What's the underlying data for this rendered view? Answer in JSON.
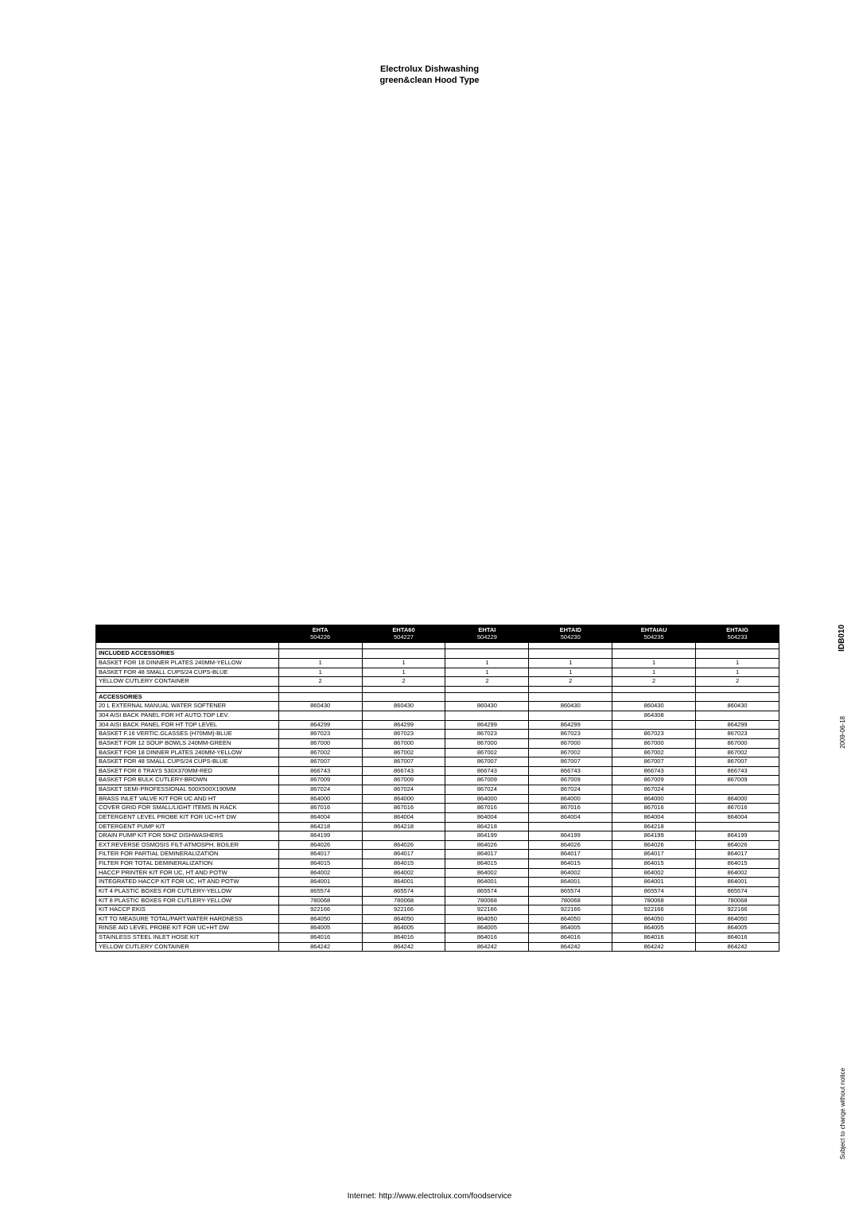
{
  "header": {
    "line1": "Electrolux Dishwashing",
    "line2": "green&clean Hood Type"
  },
  "footer": "Internet: http://www.electrolux.com/foodservice",
  "side": {
    "code": "IDB010",
    "date": "2009-06-18",
    "note": "Subject to change without notice"
  },
  "table": {
    "columns": [
      {
        "name": "EHTA",
        "sub": "504226"
      },
      {
        "name": "EHTA60",
        "sub": "504227"
      },
      {
        "name": "EHTAI",
        "sub": "504229"
      },
      {
        "name": "EHTAID",
        "sub": "504230"
      },
      {
        "name": "EHTAIAU",
        "sub": "504235"
      },
      {
        "name": "EHTAIG",
        "sub": "504233"
      }
    ],
    "sections": [
      {
        "title": "INCLUDED ACCESSORIES",
        "rows": [
          {
            "label": "BASKET FOR 18 DINNER PLATES 240MM-YELLOW",
            "v": [
              "1",
              "1",
              "1",
              "1",
              "1",
              "1"
            ]
          },
          {
            "label": "BASKET FOR 48 SMALL CUPS/24 CUPS-BLUE",
            "v": [
              "1",
              "1",
              "1",
              "1",
              "1",
              "1"
            ]
          },
          {
            "label": "YELLOW CUTLERY CONTAINER",
            "v": [
              "2",
              "2",
              "2",
              "2",
              "2",
              "2"
            ]
          }
        ]
      },
      {
        "title": "ACCESSORIES",
        "rows": [
          {
            "label": "20 L EXTERNAL MANUAL WATER SOFTENER",
            "v": [
              "860430",
              "860430",
              "860430",
              "860430",
              "860430",
              "860430"
            ]
          },
          {
            "label": "304 AISI BACK PANEL FOR HT AUTO.TOP LEV.",
            "v": [
              "",
              "",
              "",
              "",
              "864308",
              ""
            ]
          },
          {
            "label": "304 AISI BACK PANEL FOR HT TOP LEVEL",
            "v": [
              "864299",
              "864299",
              "864299",
              "864299",
              "",
              "864299"
            ]
          },
          {
            "label": "BASKET F.16 VERTIC.GLASSES (H70MM)-BLUE",
            "v": [
              "867023",
              "867023",
              "867023",
              "867023",
              "867023",
              "867023"
            ]
          },
          {
            "label": "BASKET FOR 12 SOUP BOWLS 240MM-GREEN",
            "v": [
              "867000",
              "867000",
              "867000",
              "867000",
              "867000",
              "867000"
            ]
          },
          {
            "label": "BASKET FOR 18 DINNER PLATES 240MM-YELLOW",
            "v": [
              "867002",
              "867002",
              "867002",
              "867002",
              "867002",
              "867002"
            ]
          },
          {
            "label": "BASKET FOR 48 SMALL CUPS/24 CUPS-BLUE",
            "v": [
              "867007",
              "867007",
              "867007",
              "867007",
              "867007",
              "867007"
            ]
          },
          {
            "label": "BASKET FOR 6 TRAYS 530X370MM-RED",
            "v": [
              "866743",
              "866743",
              "866743",
              "866743",
              "866743",
              "866743"
            ]
          },
          {
            "label": "BASKET FOR BULK CUTLERY-BROWN",
            "v": [
              "867009",
              "867009",
              "867009",
              "867009",
              "867009",
              "867009"
            ]
          },
          {
            "label": "BASKET SEMI-PROFESSIONAL 500X500X190MM",
            "v": [
              "867024",
              "867024",
              "867024",
              "867024",
              "867024",
              ""
            ]
          },
          {
            "label": "BRASS INLET VALVE KIT FOR UC AND HT",
            "v": [
              "864000",
              "864000",
              "864000",
              "864000",
              "864000",
              "864000"
            ]
          },
          {
            "label": "COVER GRID FOR SMALL/LIGHT ITEMS IN RACK",
            "v": [
              "867016",
              "867016",
              "867016",
              "867016",
              "867016",
              "867016"
            ]
          },
          {
            "label": "DETERGENT LEVEL PROBE KIT FOR UC+HT DW",
            "v": [
              "864004",
              "864004",
              "864004",
              "864004",
              "864004",
              "864004"
            ]
          },
          {
            "label": "DETERGENT PUMP KIT",
            "v": [
              "864218",
              "864218",
              "864218",
              "",
              "864218",
              ""
            ]
          },
          {
            "label": "DRAIN PUMP KIT FOR 50HZ DISHWASHERS",
            "v": [
              "864199",
              "",
              "864199",
              "864199",
              "864199",
              "864199"
            ]
          },
          {
            "label": "EXT.REVERSE OSMOSIS FILT-ATMOSPH. BOILER",
            "v": [
              "864026",
              "864026",
              "864026",
              "864026",
              "864026",
              "864026"
            ]
          },
          {
            "label": "FILTER FOR PARTIAL DEMINERALIZATION",
            "v": [
              "864017",
              "864017",
              "864017",
              "864017",
              "864017",
              "864017"
            ]
          },
          {
            "label": "FILTER FOR TOTAL DEMINERALIZATION",
            "v": [
              "864015",
              "864015",
              "864015",
              "864015",
              "864015",
              "864015"
            ]
          },
          {
            "label": "HACCP PRINTER KIT FOR UC, HT AND POTW",
            "v": [
              "864002",
              "864002",
              "864002",
              "864002",
              "864002",
              "864002"
            ]
          },
          {
            "label": "INTEGRATED HACCP KIT FOR UC, HT AND POTW",
            "v": [
              "864001",
              "864001",
              "864001",
              "864001",
              "864001",
              "864001"
            ]
          },
          {
            "label": "KIT 4 PLASTIC BOXES FOR CUTLERY-YELLOW",
            "v": [
              "865574",
              "865574",
              "865574",
              "865574",
              "865574",
              "865574"
            ]
          },
          {
            "label": "KIT 8  PLASTIC BOXES FOR CUTLERY-YELLOW",
            "v": [
              "780068",
              "780068",
              "780068",
              "780068",
              "780068",
              "780068"
            ]
          },
          {
            "label": "KIT HACCP EKIS",
            "v": [
              "922166",
              "922166",
              "922166",
              "922166",
              "922166",
              "922166"
            ]
          },
          {
            "label": "KIT TO MEASURE TOTAL/PART.WATER HARDNESS",
            "v": [
              "864050",
              "864050",
              "864050",
              "864050",
              "864050",
              "864050"
            ]
          },
          {
            "label": "RINSE AID LEVEL PROBE KIT FOR UC+HT DW",
            "v": [
              "864005",
              "864005",
              "864005",
              "864005",
              "864005",
              "864005"
            ]
          },
          {
            "label": "STAINLESS STEEL INLET HOSE KIT",
            "v": [
              "864016",
              "864016",
              "864016",
              "864016",
              "864016",
              "864016"
            ]
          },
          {
            "label": "YELLOW CUTLERY CONTAINER",
            "v": [
              "864242",
              "864242",
              "864242",
              "864242",
              "864242",
              "864242"
            ]
          }
        ]
      }
    ],
    "styles": {
      "header_bg": "#000000",
      "header_fg": "#ffffff",
      "row_bg": "#ffffff",
      "border": "#000000",
      "font_size": 7.5,
      "label_col_width": 230,
      "val_col_width": 105
    }
  }
}
